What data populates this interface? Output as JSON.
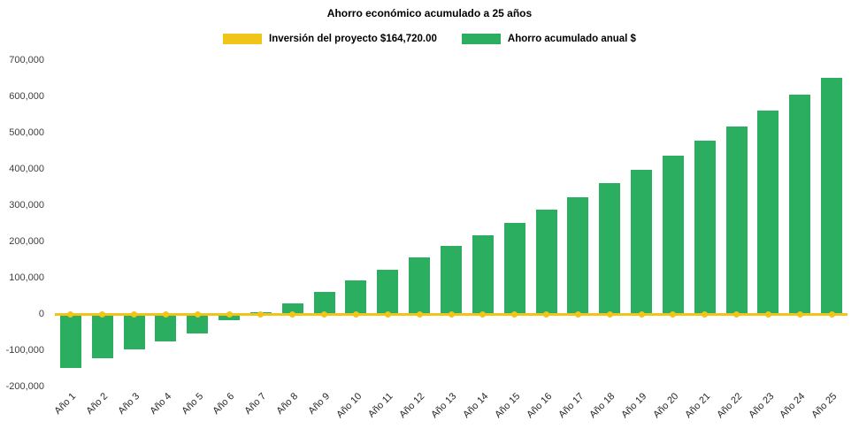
{
  "page": {
    "background": "#ffffff"
  },
  "chart_data": {
    "type": "bar",
    "title": "Ahorro económico acumulado a 25 años",
    "categories": [
      "Año 1",
      "Año 2",
      "Año 3",
      "Año 4",
      "Año 5",
      "Año 6",
      "Año 7",
      "Año 8",
      "Año 9",
      "Año 10",
      "Año 11",
      "Año 12",
      "Año 13",
      "Año 14",
      "Año 15",
      "Año 16",
      "Año 17",
      "Año 18",
      "Año 19",
      "Año 20",
      "Año 21",
      "Año 22",
      "Año 23",
      "Año 24",
      "Año 25"
    ],
    "series": [
      {
        "name": "Inversión del proyecto $164,720.00",
        "type": "line",
        "color": "#F0C419",
        "values": [
          0,
          0,
          0,
          0,
          0,
          0,
          0,
          0,
          0,
          0,
          0,
          0,
          0,
          0,
          0,
          0,
          0,
          0,
          0,
          0,
          0,
          0,
          0,
          0,
          0
        ]
      },
      {
        "name": "Ahorro acumulado anual $",
        "type": "bar",
        "color": "#2BAE60",
        "values": [
          -148000,
          -122000,
          -98000,
          -76000,
          -54000,
          -18000,
          5000,
          30000,
          62000,
          92000,
          122000,
          155000,
          188000,
          218000,
          252000,
          288000,
          323000,
          360000,
          398000,
          437000,
          478000,
          518000,
          560000,
          605000,
          652000
        ]
      }
    ],
    "ylim": [
      -200000,
      700000
    ],
    "y_ticks": [
      "700,000",
      "600,000",
      "500,000",
      "400,000",
      "300,000",
      "200,000",
      "100,000",
      "0",
      "-100,000",
      "-200,000"
    ],
    "grid": false,
    "legend_position": "top"
  }
}
